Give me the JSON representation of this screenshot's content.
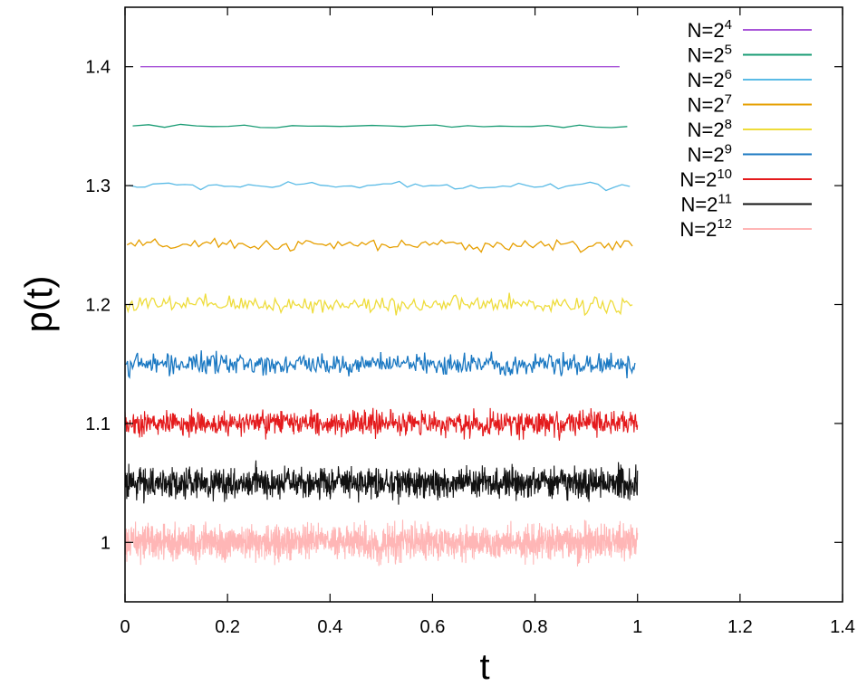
{
  "chart_data": {
    "type": "line",
    "xlabel": "t",
    "ylabel": "p(t)",
    "xlim": [
      0,
      1.4
    ],
    "ylim": [
      0.95,
      1.45
    ],
    "x_ticks": [
      0,
      0.2,
      0.4,
      0.6,
      0.8,
      1,
      1.2,
      1.4
    ],
    "x_tick_labels": [
      "0",
      "0.2",
      "0.4",
      "0.6",
      "0.8",
      "1",
      "1.2",
      "1.4"
    ],
    "y_ticks": [
      1,
      1.1,
      1.2,
      1.3,
      1.4
    ],
    "y_tick_labels": [
      "1",
      "1.1",
      "1.2",
      "1.3",
      "1.4"
    ],
    "grid": false,
    "legend_position": "top-right",
    "series": [
      {
        "name": "N=2^4",
        "base": "N=2",
        "exp": "4",
        "color": "#a855d8",
        "baseline": 1.4,
        "amplitude": 0.0,
        "points": 2,
        "x_start": 0.03,
        "x_end": 0.965
      },
      {
        "name": "N=2^5",
        "base": "N=2",
        "exp": "5",
        "color": "#1a9c74",
        "baseline": 1.35,
        "amplitude": 0.002,
        "points": 32,
        "x_start": 0.015,
        "x_end": 0.98
      },
      {
        "name": "N=2^6",
        "base": "N=2",
        "exp": "6",
        "color": "#5bbbe6",
        "baseline": 1.3,
        "amplitude": 0.004,
        "points": 64,
        "x_start": 0.008,
        "x_end": 0.985
      },
      {
        "name": "N=2^7",
        "base": "N=2",
        "exp": "7",
        "color": "#e69f00",
        "baseline": 1.25,
        "amplitude": 0.006,
        "points": 128,
        "x_start": 0.004,
        "x_end": 0.99
      },
      {
        "name": "N=2^8",
        "base": "N=2",
        "exp": "8",
        "color": "#eedc3a",
        "baseline": 1.2,
        "amplitude": 0.009,
        "points": 256,
        "x_start": 0.002,
        "x_end": 0.99
      },
      {
        "name": "N=2^9",
        "base": "N=2",
        "exp": "9",
        "color": "#1a78c2",
        "baseline": 1.15,
        "amplitude": 0.011,
        "points": 512,
        "x_start": 0.001,
        "x_end": 0.995
      },
      {
        "name": "N=2^10",
        "base": "N=2",
        "exp": "10",
        "color": "#e41a1c",
        "baseline": 1.1,
        "amplitude": 0.013,
        "points": 1024,
        "x_start": 0.0,
        "x_end": 1.0
      },
      {
        "name": "N=2^11",
        "base": "N=2",
        "exp": "11",
        "color": "#111111",
        "baseline": 1.05,
        "amplitude": 0.016,
        "points": 1500,
        "x_start": 0.0,
        "x_end": 1.0
      },
      {
        "name": "N=2^12",
        "base": "N=2",
        "exp": "12",
        "color": "#ffb6b6",
        "baseline": 1.0,
        "amplitude": 0.018,
        "points": 2000,
        "x_start": 0.0,
        "x_end": 1.0
      }
    ]
  }
}
